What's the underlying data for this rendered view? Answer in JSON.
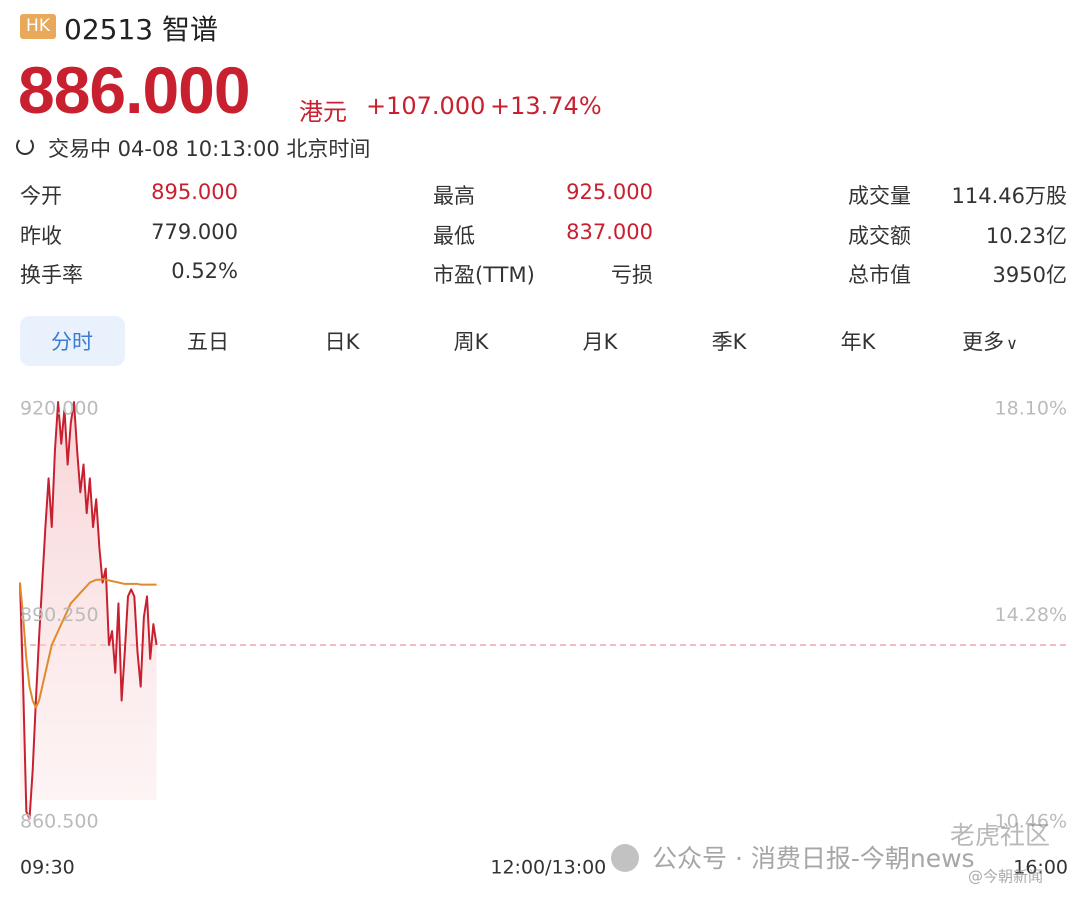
{
  "header": {
    "badge": "HK",
    "code": "02513",
    "name": "智谱"
  },
  "quote": {
    "price": "886.000",
    "currency": "港元",
    "change": "+107.000",
    "change_pct": "+13.74%"
  },
  "status": "交易中 04-08 10:13:00 北京时间",
  "stats": [
    {
      "label": "今开",
      "value": "895.000"
    },
    {
      "label": "最高",
      "value": "925.000"
    },
    {
      "label": "成交量",
      "value": "114.46万股"
    },
    {
      "label": "昨收",
      "value": "779.000"
    },
    {
      "label": "最低",
      "value": "837.000"
    },
    {
      "label": "成交额",
      "value": "10.23亿"
    },
    {
      "label": "换手率",
      "value": "0.52%"
    },
    {
      "label": "市盈(TTM)",
      "value": "亏损"
    },
    {
      "label": "总市值",
      "value": "3950亿"
    }
  ],
  "tabs": [
    "分时",
    "五日",
    "日K",
    "周K",
    "月K",
    "季K",
    "年K",
    "更多"
  ],
  "watermarks": [
    "公众号 · 消费日报-今朝news",
    "老虎社区",
    "@今朝新闻"
  ],
  "chart_data": {
    "type": "line",
    "x": [
      0,
      1,
      2,
      3,
      4,
      5,
      6,
      7,
      8,
      9,
      10,
      11,
      12,
      13,
      14,
      15,
      16,
      17,
      18,
      19,
      20,
      21,
      22,
      23,
      24,
      25,
      26,
      27,
      28,
      29,
      30,
      31,
      32,
      33,
      34,
      35,
      36,
      37,
      38,
      39,
      40,
      41,
      42,
      43
    ],
    "series": [
      {
        "color": "#c8202f",
        "values": [
          895,
          880,
          862,
          861,
          868,
          878,
          887,
          895,
          903,
          910,
          903,
          914,
          921,
          915,
          920,
          912,
          918,
          921,
          914,
          908,
          912,
          905,
          910,
          903,
          907,
          900,
          895,
          897,
          886,
          888,
          882,
          892,
          878,
          885,
          893,
          894,
          893,
          885,
          880,
          890,
          893,
          884,
          889,
          886
        ]
      },
      {
        "color": "#e08a2c",
        "values": [
          895,
          890,
          884,
          880,
          878,
          877,
          878,
          880,
          882,
          884,
          886,
          887,
          888,
          889,
          890,
          891,
          892,
          892.5,
          893,
          893.5,
          894,
          894.5,
          895,
          895.2,
          895.4,
          895.4,
          895.5,
          895.4,
          895.3,
          895.2,
          895.1,
          895,
          894.9,
          894.8,
          894.8,
          894.8,
          894.8,
          894.8,
          894.7,
          894.7,
          894.7,
          894.7,
          894.7,
          894.7
        ]
      }
    ],
    "reference_line": 886,
    "xlim": [
      0,
      330
    ],
    "xticks": [
      {
        "value": 0,
        "label": "09:30"
      },
      {
        "value": 150,
        "label": "12:00/13:00"
      },
      {
        "value": 330,
        "label": "16:00"
      }
    ],
    "ylim": [
      860.5,
      920
    ],
    "yticks": [
      {
        "value": 920,
        "label": "920.000"
      },
      {
        "value": 890.25,
        "label": "890.250"
      },
      {
        "value": 860.5,
        "label": "860.500"
      }
    ],
    "y2lim": [
      10.46,
      18.1
    ],
    "y2ticks": [
      {
        "value": 18.1,
        "label": "18.10%"
      },
      {
        "value": 14.28,
        "label": "14.28%"
      },
      {
        "value": 10.46,
        "label": "10.46%"
      }
    ]
  }
}
